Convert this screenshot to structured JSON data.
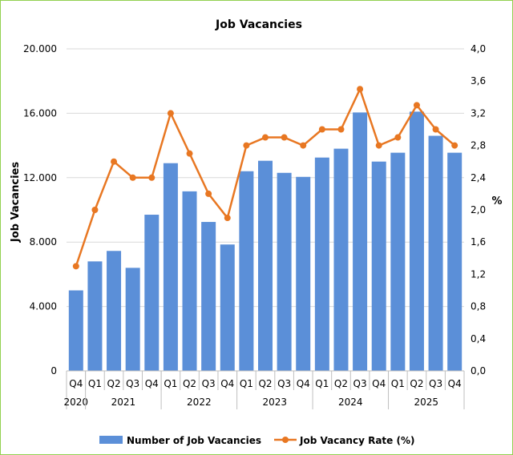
{
  "chart_data": {
    "type": "bar",
    "title": "Job Vacancies",
    "ylabel": "Job Vacancies",
    "y2label": "%",
    "ylim": [
      0,
      20000
    ],
    "y2lim": [
      0,
      4.0
    ],
    "yticks": [
      "0",
      "4.000",
      "8.000",
      "12.000",
      "16.000",
      "20.000"
    ],
    "y2ticks": [
      "0,0",
      "0,4",
      "0,8",
      "1,2",
      "1,6",
      "2,0",
      "2,4",
      "2,8",
      "3,2",
      "3,6",
      "4,0"
    ],
    "categories": [
      "Q4",
      "Q1",
      "Q2",
      "Q3",
      "Q4",
      "Q1",
      "Q2",
      "Q3",
      "Q4",
      "Q1",
      "Q2",
      "Q3",
      "Q4",
      "Q1",
      "Q2",
      "Q3",
      "Q4",
      "Q1",
      "Q2",
      "Q3",
      "Q4"
    ],
    "year_groups": [
      {
        "label": "2020",
        "span": 1
      },
      {
        "label": "2021",
        "span": 4
      },
      {
        "label": "2022",
        "span": 4
      },
      {
        "label": "2023",
        "span": 4
      },
      {
        "label": "2024",
        "span": 4
      },
      {
        "label": "2025",
        "span": 4
      }
    ],
    "series": [
      {
        "name": "Number of Job Vacancies",
        "type": "bar",
        "axis": "left",
        "color": "#5b8fd8",
        "values": [
          5000,
          6800,
          7450,
          6400,
          9700,
          12900,
          11150,
          9250,
          7850,
          12400,
          13050,
          12300,
          12050,
          13250,
          13800,
          16050,
          13000,
          13550,
          16100,
          14600,
          13550
        ]
      },
      {
        "name": "Job Vacancy Rate (%)",
        "type": "line",
        "axis": "right",
        "color": "#e87722",
        "values": [
          1.3,
          2.0,
          2.6,
          2.4,
          2.4,
          3.2,
          2.7,
          2.2,
          1.9,
          2.8,
          2.9,
          2.9,
          2.8,
          3.0,
          3.0,
          3.5,
          2.8,
          2.9,
          3.3,
          3.0,
          2.8
        ]
      }
    ],
    "grid": true,
    "legend": "bottom"
  }
}
